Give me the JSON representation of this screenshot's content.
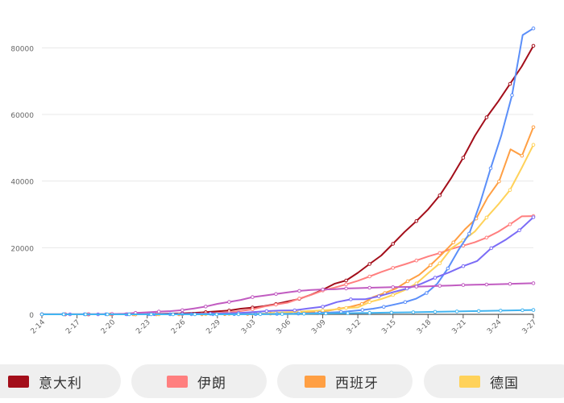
{
  "chart_data": {
    "type": "line",
    "title": "",
    "xlabel": "",
    "ylabel": "",
    "ylim": [
      0,
      90000
    ],
    "y_ticks": [
      0,
      20000,
      40000,
      60000,
      80000
    ],
    "y_tick_labels": [
      "0",
      "20000",
      "40000",
      "60000",
      "80000"
    ],
    "x_tick_labels": [
      "2-14",
      "2-17",
      "2-20",
      "2-23",
      "2-26",
      "2-29",
      "3-03",
      "3-06",
      "3-09",
      "3-12",
      "3-15",
      "3-18",
      "3-21",
      "3-24",
      "3-27"
    ],
    "grid": true,
    "legend_position": "bottom",
    "series": [
      {
        "name": "意大利",
        "color": "#a30e1a",
        "values": [
          0,
          0,
          0,
          0,
          0,
          0,
          0,
          0,
          0,
          20,
          150,
          230,
          320,
          450,
          650,
          890,
          1130,
          1700,
          2040,
          2500,
          3090,
          3860,
          4640,
          5880,
          7380,
          9170,
          10150,
          12460,
          15110,
          17660,
          21160,
          24750,
          27980,
          31510,
          35710,
          41040,
          47020,
          53580,
          59140,
          63930,
          69180,
          74390,
          80590
        ]
      },
      {
        "name": "伊朗",
        "color": "#ff7f7f",
        "values": [
          0,
          0,
          0,
          0,
          0,
          0,
          0,
          0,
          2,
          10,
          30,
          60,
          100,
          140,
          250,
          390,
          590,
          980,
          1500,
          2340,
          2920,
          3510,
          4750,
          5820,
          7160,
          8040,
          9000,
          10070,
          11360,
          12730,
          13940,
          14990,
          16170,
          17360,
          18400,
          19640,
          20610,
          21640,
          23040,
          24810,
          27020,
          29410,
          29500
        ]
      },
      {
        "name": "西班牙",
        "color": "#ff9f43",
        "values": [
          0,
          0,
          0,
          0,
          0,
          0,
          0,
          0,
          0,
          0,
          0,
          2,
          6,
          12,
          25,
          32,
          45,
          84,
          120,
          165,
          222,
          259,
          400,
          500,
          673,
          1073,
          1695,
          2277,
          3146,
          5232,
          6391,
          7798,
          9942,
          11826,
          14769,
          18077,
          21571,
          25496,
          28768,
          35136,
          39885,
          49515,
          47610,
          56188
        ]
      },
      {
        "name": "德国",
        "color": "#ffd25a",
        "values": [
          16,
          16,
          16,
          16,
          16,
          16,
          16,
          16,
          16,
          16,
          16,
          16,
          18,
          26,
          48,
          79,
          130,
          159,
          196,
          262,
          482,
          670,
          799,
          1040,
          1176,
          1457,
          1908,
          2078,
          3675,
          4585,
          5795,
          7272,
          9257,
          12327,
          15320,
          19848,
          22213,
          24873,
          29056,
          32986,
          37323,
          43938,
          50871
        ]
      },
      {
        "name": "",
        "color": "#5b8ff9",
        "values": [
          15,
          15,
          15,
          15,
          15,
          15,
          15,
          15,
          15,
          15,
          15,
          15,
          16,
          16,
          18,
          20,
          24,
          30,
          53,
          68,
          75,
          100,
          124,
          158,
          221,
          319,
          435,
          541,
          704,
          994,
          1301,
          1697,
          2247,
          2943,
          3680,
          4663,
          6411,
          9197,
          13779,
          19383,
          24207,
          33276,
          43847,
          53740,
          65778,
          83836,
          85840
        ]
      },
      {
        "name": "",
        "color": "#7b6cf6",
        "values": [
          12,
          12,
          12,
          12,
          12,
          14,
          18,
          38,
          57,
          100,
          130,
          191,
          204,
          288,
          380,
          656,
          959,
          1136,
          1219,
          1794,
          2293,
          3681,
          4499,
          4523,
          5423,
          6633,
          7730,
          9134,
          10995,
          12612,
          14459,
          16018,
          19856,
          22302,
          25233,
          29155
        ]
      },
      {
        "name": "",
        "color": "#c15cc1",
        "values": [
          28,
          28,
          29,
          30,
          31,
          51,
          104,
          204,
          433,
          602,
          833,
          977,
          1261,
          1766,
          2337,
          3150,
          3736,
          4335,
          5186,
          5621,
          6088,
          6593,
          7041,
          7313,
          7478,
          7513,
          7755,
          7869,
          7979,
          8086,
          8162,
          8236,
          8320,
          8413,
          8565,
          8652,
          8799,
          8897,
          8961,
          9037,
          9137,
          9241,
          9332
        ]
      },
      {
        "name": "",
        "color": "#42b4f0",
        "values": [
          0,
          0,
          0,
          0,
          0,
          0,
          0,
          0,
          0,
          0,
          0,
          0,
          0,
          0,
          0,
          2,
          5,
          10,
          20,
          40,
          60,
          80,
          100,
          130,
          170,
          210,
          260,
          300,
          340,
          390,
          430,
          480,
          530,
          580,
          640,
          700,
          760,
          820,
          880,
          950,
          1000,
          1060,
          1120,
          1180,
          1240,
          1300
        ]
      }
    ]
  },
  "legend": [
    {
      "label": "意大利",
      "color": "#a30e1a"
    },
    {
      "label": "伊朗",
      "color": "#ff7f7f"
    },
    {
      "label": "西班牙",
      "color": "#ff9f43"
    },
    {
      "label": "德国",
      "color": "#ffd25a"
    }
  ]
}
